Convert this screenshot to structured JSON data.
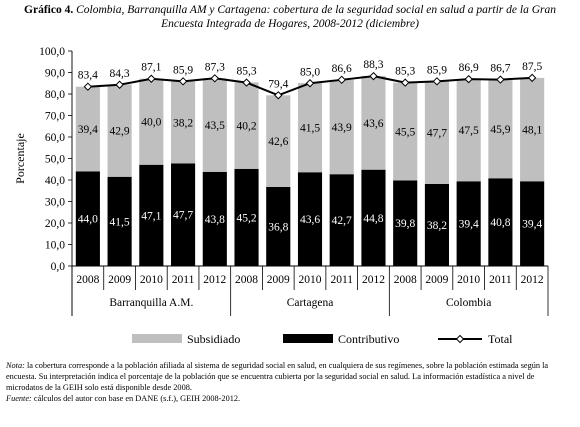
{
  "figure": {
    "label": "Gráfico 4.",
    "title": "Colombia, Barranquilla AM y Cartagena: cobertura de la seguridad social en salud a partir de la Gran Encuesta Integrada de Hogares, 2008-2012 (diciembre)"
  },
  "chart_data": {
    "type": "bar",
    "stacked": true,
    "ylabel": "Porcentaje",
    "ylim": [
      0,
      100
    ],
    "yticks": [
      "0,0",
      "10,0",
      "20,0",
      "30,0",
      "40,0",
      "50,0",
      "60,0",
      "70,0",
      "80,0",
      "90,0",
      "100,0"
    ],
    "groups": [
      {
        "name": "Barranquilla A.M.",
        "categories": [
          "2008",
          "2009",
          "2010",
          "2011",
          "2012"
        ]
      },
      {
        "name": "Cartagena",
        "categories": [
          "2008",
          "2009",
          "2010",
          "2011",
          "2012"
        ]
      },
      {
        "name": "Colombia",
        "categories": [
          "2008",
          "2009",
          "2010",
          "2011",
          "2012"
        ]
      }
    ],
    "series": [
      {
        "name": "Contributivo",
        "kind": "bar",
        "color": "#000000",
        "values": [
          44.0,
          41.5,
          47.1,
          47.7,
          43.8,
          45.2,
          36.8,
          43.6,
          42.7,
          44.8,
          39.8,
          38.2,
          39.4,
          40.8,
          39.4
        ],
        "labels": [
          "44,0",
          "41,5",
          "47,1",
          "47,7",
          "43,8",
          "45,2",
          "36,8",
          "43,6",
          "42,7",
          "44,8",
          "39,8",
          "38,2",
          "39,4",
          "40,8",
          "39,4"
        ]
      },
      {
        "name": "Subsidiado",
        "kind": "bar",
        "color": "#bfbfbf",
        "values": [
          39.4,
          42.9,
          40.0,
          38.2,
          43.5,
          40.2,
          42.6,
          41.5,
          43.9,
          43.6,
          45.5,
          47.7,
          47.5,
          45.9,
          48.1
        ],
        "labels": [
          "39,4",
          "42,9",
          "40,0",
          "38,2",
          "43,5",
          "40,2",
          "42,6",
          "41,5",
          "43,9",
          "43,6",
          "45,5",
          "47,7",
          "47,5",
          "45,9",
          "48,1"
        ]
      },
      {
        "name": "Total",
        "kind": "line",
        "color": "#000000",
        "values": [
          83.4,
          84.3,
          87.1,
          85.9,
          87.3,
          85.3,
          79.4,
          85.0,
          86.6,
          88.3,
          85.3,
          85.9,
          86.9,
          86.7,
          87.5
        ],
        "labels": [
          "83,4",
          "84,3",
          "87,1",
          "85,9",
          "87,3",
          "85,3",
          "79,4",
          "85,0",
          "86,6",
          "88,3",
          "85,3",
          "85,9",
          "86,9",
          "86,7",
          "87,5"
        ]
      }
    ],
    "legend": {
      "position": "bottom",
      "items": [
        "Subsidiado",
        "Contributivo",
        "Total"
      ]
    }
  },
  "notes": {
    "nota_label": "Nota:",
    "nota_text": " la cobertura corresponde a la población afiliada al sistema de seguridad social en salud, en cualquiera de sus regímenes, sobre la población estimada según la encuesta. Su interpretación indica el porcentaje de la población que se encuentra cubierta por la seguridad social en salud. La información estadística a nivel de microdatos de la GEIH solo está disponible desde 2008.",
    "fuente_label": "Fuente:",
    "fuente_text": " cálculos del autor con base en DANE (s.f.), GEIH 2008-2012."
  }
}
